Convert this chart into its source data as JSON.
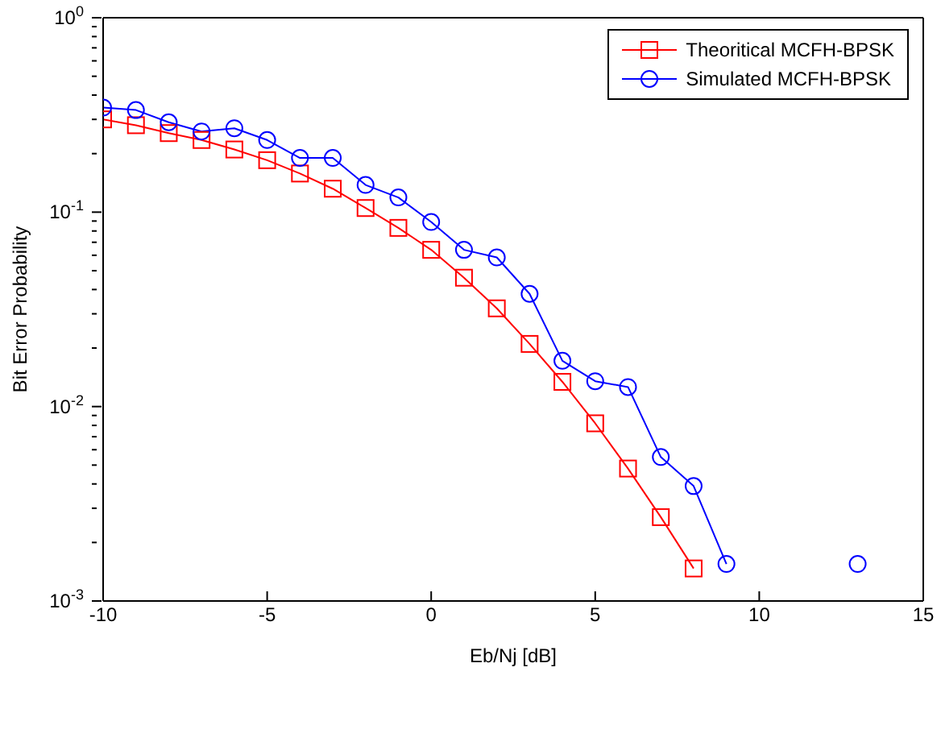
{
  "chart_data": {
    "type": "line",
    "xlabel": "Eb/Nj [dB]",
    "ylabel": "Bit Error Probability",
    "log": "y",
    "xlim": [
      -10,
      15
    ],
    "xticks": [
      -10,
      -5,
      0,
      5,
      10,
      15
    ],
    "ylim": [
      0.001,
      1
    ],
    "yticks": [
      {
        "value": 0.001,
        "label": "10$^{-3}$"
      },
      {
        "value": 0.002,
        "label": null
      },
      {
        "value": 0.003,
        "label": null
      },
      {
        "value": 0.004,
        "label": null
      },
      {
        "value": 0.005,
        "label": null
      },
      {
        "value": 0.006,
        "label": null
      },
      {
        "value": 0.007,
        "label": null
      },
      {
        "value": 0.008,
        "label": null
      },
      {
        "value": 0.009,
        "label": null
      },
      {
        "value": 0.01,
        "label": "10$^{-2}$"
      },
      {
        "value": 0.02,
        "label": null
      },
      {
        "value": 0.03,
        "label": null
      },
      {
        "value": 0.04,
        "label": null
      },
      {
        "value": 0.05,
        "label": null
      },
      {
        "value": 0.06,
        "label": null
      },
      {
        "value": 0.07,
        "label": null
      },
      {
        "value": 0.08,
        "label": null
      },
      {
        "value": 0.09,
        "label": null
      },
      {
        "value": 0.1,
        "label": "10$^{-1}$"
      },
      {
        "value": 0.2,
        "label": null
      },
      {
        "value": 0.3,
        "label": null
      },
      {
        "value": 0.4,
        "label": null
      },
      {
        "value": 0.5,
        "label": null
      },
      {
        "value": 0.6,
        "label": null
      },
      {
        "value": 0.7,
        "label": null
      },
      {
        "value": 0.8,
        "label": null
      },
      {
        "value": 0.9,
        "label": null
      },
      {
        "value": 1,
        "label": "10$^{0}$"
      }
    ],
    "legend": "top right",
    "line_style": "solid",
    "series": [
      {
        "name": "Theoritical MCFH-BPSK",
        "color": "#ff0000",
        "marker": "square",
        "x": [
          -10,
          -9,
          -8,
          -7,
          -6,
          -5,
          -4,
          -3,
          -2,
          -1,
          0,
          1,
          2,
          3,
          4,
          5,
          6,
          7,
          8
        ],
        "values": [
          0.3,
          0.28,
          0.255,
          0.235,
          0.21,
          0.185,
          0.158,
          0.132,
          0.105,
          0.083,
          0.064,
          0.046,
          0.032,
          0.021,
          0.0134,
          0.0082,
          0.0048,
          0.0027,
          0.00147
        ]
      },
      {
        "name": "Simulated MCFH-BPSK",
        "color": "#0000ff",
        "marker": "circle",
        "x": [
          -10,
          -9,
          -8,
          -7,
          -6,
          -5,
          -4,
          -3,
          -2,
          -1,
          0,
          1,
          2,
          3,
          4,
          5,
          6,
          7,
          8,
          9,
          10,
          11,
          12,
          13
        ],
        "values": [
          0.345,
          0.335,
          0.29,
          0.26,
          0.27,
          0.235,
          0.19,
          0.19,
          0.138,
          0.119,
          0.089,
          0.064,
          0.0585,
          0.038,
          0.0172,
          0.0135,
          0.0126,
          0.0055,
          0.0039,
          0.00155,
          null,
          null,
          null,
          0.00155
        ]
      }
    ]
  }
}
